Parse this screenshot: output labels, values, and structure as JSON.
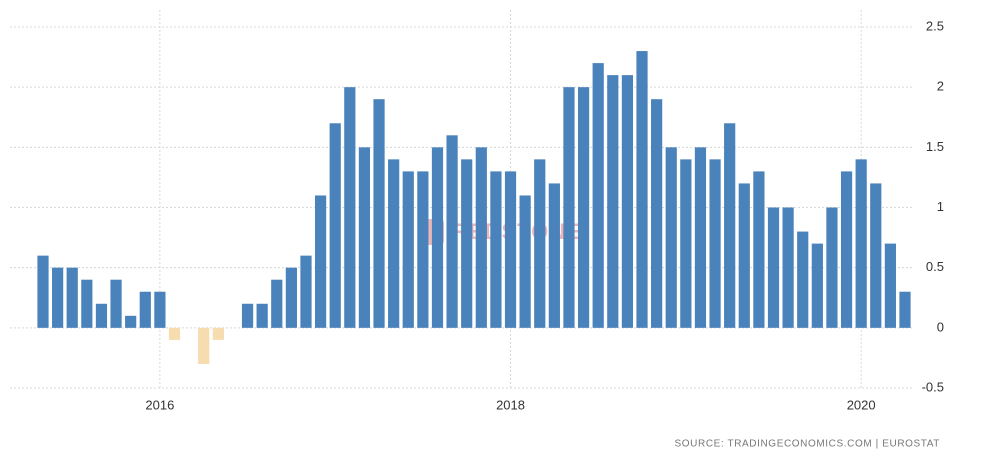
{
  "chart_data": {
    "type": "bar",
    "categories": [
      null,
      null,
      null,
      null,
      null,
      null,
      null,
      null,
      "2016",
      null,
      null,
      null,
      null,
      null,
      null,
      null,
      null,
      null,
      null,
      null,
      null,
      null,
      null,
      null,
      null,
      null,
      null,
      null,
      null,
      null,
      null,
      null,
      "2018",
      null,
      null,
      null,
      null,
      null,
      null,
      null,
      null,
      null,
      null,
      null,
      null,
      null,
      null,
      null,
      null,
      null,
      null,
      null,
      null,
      null,
      null,
      null,
      "2020",
      null,
      null,
      null
    ],
    "values": [
      0.6,
      0.5,
      0.5,
      0.4,
      0.2,
      0.4,
      0.1,
      0.3,
      0.3,
      -0.1,
      0,
      -0.3,
      -0.1,
      0,
      0.2,
      0.2,
      0.4,
      0.5,
      0.6,
      1.1,
      1.7,
      2.0,
      1.5,
      1.9,
      1.4,
      1.3,
      1.3,
      1.5,
      1.6,
      1.4,
      1.5,
      1.3,
      1.3,
      1.1,
      1.4,
      1.2,
      2.0,
      2.0,
      2.2,
      2.1,
      2.1,
      2.3,
      1.9,
      1.5,
      1.4,
      1.5,
      1.4,
      1.7,
      1.2,
      1.3,
      1.0,
      1.0,
      0.8,
      0.7,
      1.0,
      1.3,
      1.4,
      1.2,
      0.7,
      0.3
    ],
    "color": "#4a82bb",
    "negative_color": "#f6dcae",
    "ylim": [
      -0.5,
      2.5
    ],
    "yticks": [
      -0.5,
      0,
      0.5,
      1,
      1.5,
      2,
      2.5
    ],
    "grid": true,
    "watermark": "REDSTONE",
    "source": "SOURCE: TRADINGECONOMICS.COM  |  EUROSTAT"
  }
}
